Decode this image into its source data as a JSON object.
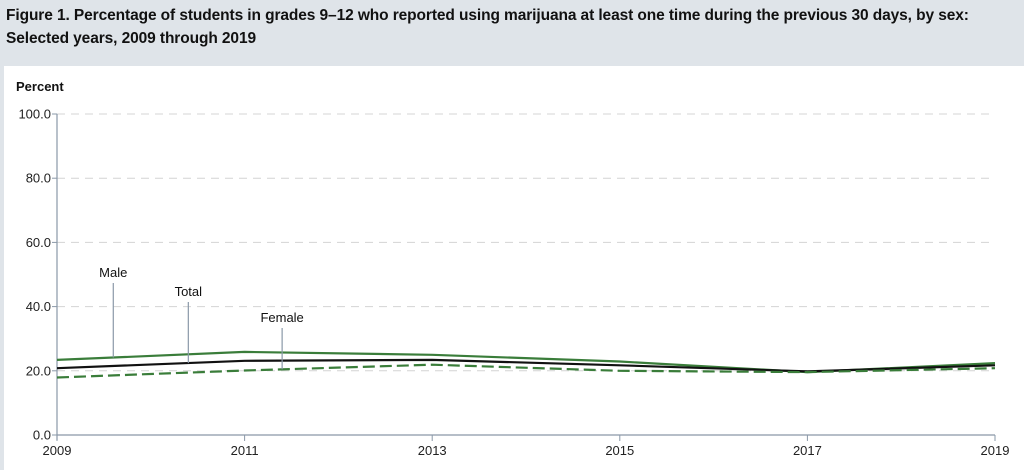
{
  "figure": {
    "title": "Figure 1. Percentage of students in grades 9–12 who reported using marijuana at least one time during the previous 30 days, by sex: Selected years, 2009 through 2019"
  },
  "chart_data": {
    "type": "line",
    "title": "Figure 1. Percentage of students in grades 9–12 who reported using marijuana at least one time during the previous 30 days, by sex: Selected years, 2009 through 2019",
    "xlabel": "",
    "ylabel": "Percent",
    "x": [
      "2009",
      "2011",
      "2013",
      "2015",
      "2017",
      "2019"
    ],
    "ylim": [
      0,
      100
    ],
    "yticks": [
      "0.0",
      "20.0",
      "40.0",
      "60.0",
      "80.0",
      "100.0"
    ],
    "ytick_values": [
      0,
      20,
      40,
      60,
      80,
      100
    ],
    "grid": true,
    "legend": "inline-annotations",
    "series": [
      {
        "name": "Male",
        "label": "Male",
        "color": "#3a7d3a",
        "style": "solid",
        "values": [
          23.4,
          25.9,
          25.0,
          22.9,
          19.6,
          22.4
        ]
      },
      {
        "name": "Total",
        "label": "Total",
        "color": "#111111",
        "style": "solid",
        "values": [
          20.8,
          23.1,
          23.4,
          21.7,
          19.8,
          21.7
        ]
      },
      {
        "name": "Female",
        "label": "Female",
        "color": "#3a7d3a",
        "style": "dashed",
        "values": [
          17.9,
          20.1,
          21.9,
          20.0,
          19.6,
          20.8
        ]
      }
    ],
    "annotations": [
      {
        "series": "Male",
        "text": "Male",
        "anchor_x": 2009.6
      },
      {
        "series": "Total",
        "text": "Total",
        "anchor_x": 2010.4
      },
      {
        "series": "Female",
        "text": "Female",
        "anchor_x": 2011.4
      }
    ]
  }
}
